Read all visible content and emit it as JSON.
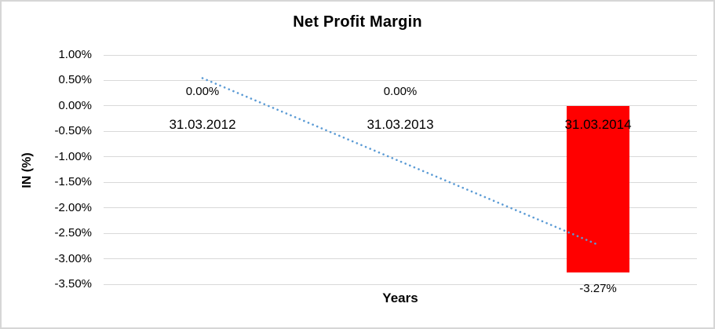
{
  "chart_data": {
    "type": "bar",
    "title": "Net Profit Margin",
    "xlabel": "Years",
    "ylabel": "IN (%)",
    "categories": [
      "31.03.2012",
      "31.03.2013",
      "31.03.2014"
    ],
    "values": [
      0.0,
      0.0,
      -3.27
    ],
    "data_labels": [
      "0.00%",
      "0.00%",
      "-3.27%"
    ],
    "ylim": [
      -3.5,
      1.0
    ],
    "ytick_step": 0.5,
    "ytick_labels": [
      "1.00%",
      "0.50%",
      "0.00%",
      "-0.50%",
      "-1.00%",
      "-1.50%",
      "-2.00%",
      "-2.50%",
      "-3.00%",
      "-3.50%"
    ],
    "grid": true,
    "legend": "none",
    "trendline": {
      "kind": "linear-dotted",
      "start_value": 0.545,
      "end_value": -2.725
    },
    "colors": {
      "bar": "#ff0000",
      "trendline": "#5b9bd5",
      "gridline": "#d9d9d9",
      "text": "#000000",
      "background": "#ffffff",
      "border": "#d6d6d6"
    }
  }
}
